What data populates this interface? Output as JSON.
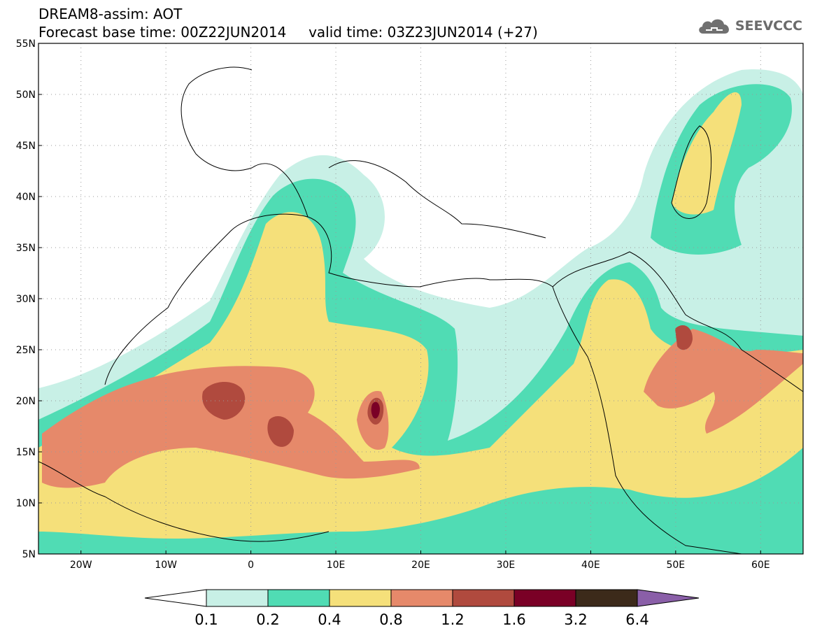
{
  "header": {
    "model_title": "DREAM8-assim: AOT",
    "base_time": "Forecast base time: 00Z22JUN2014",
    "valid_time": "valid time: 03Z23JUN2014 (+27)"
  },
  "logo": {
    "text": "SEEVCCC",
    "icon": "cloud-icon"
  },
  "map": {
    "lat_labels": [
      "55N",
      "50N",
      "45N",
      "40N",
      "35N",
      "30N",
      "25N",
      "20N",
      "15N",
      "10N",
      "5N"
    ],
    "lon_labels": [
      "20W",
      "10W",
      "0",
      "10E",
      "20E",
      "30E",
      "40E",
      "50E",
      "60E"
    ],
    "lat_range": [
      5,
      55
    ],
    "lon_range": [
      -25,
      65
    ],
    "grid": "dotted"
  },
  "colorbar": {
    "ticks": [
      "0.1",
      "0.2",
      "0.4",
      "0.8",
      "1.2",
      "1.6",
      "3.2",
      "6.4"
    ],
    "colors": [
      "#ffffff",
      "#c8f0e6",
      "#50dcb4",
      "#f5e07a",
      "#e6896a",
      "#b04a3e",
      "#7a0026",
      "#3c2a1a",
      "#8a5fa8"
    ]
  }
}
